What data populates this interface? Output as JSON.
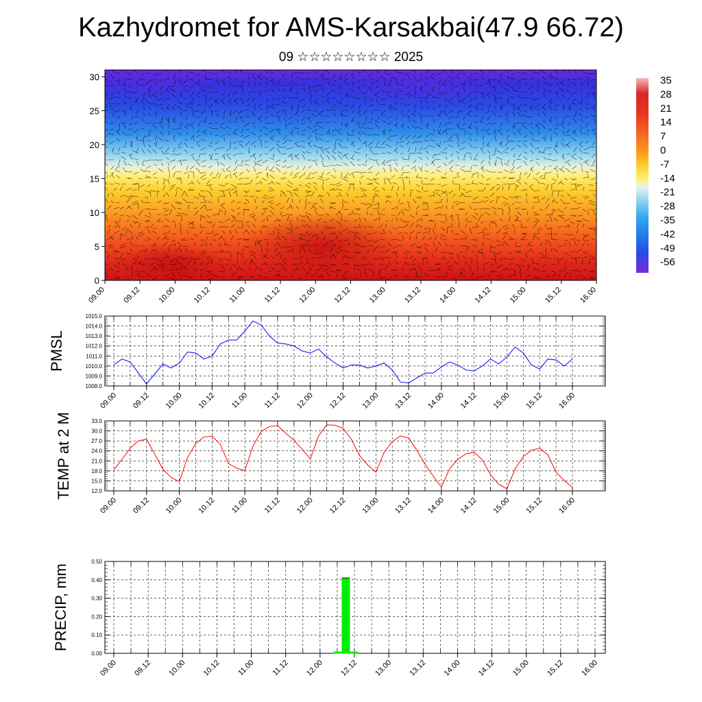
{
  "header": {
    "title": "Kazhydromet for AMS-Karsakbai(47.9 66.72)",
    "subtitle": "09 ☆☆☆☆☆☆☆☆ 2025"
  },
  "colors": {
    "pmsl_line": "#0000ff",
    "temp_line": "#ff0000",
    "precip_bar": "#00ee00"
  },
  "chart_data": [
    {
      "type": "heatmap",
      "title": "",
      "x_tick_labels": [
        "09.00",
        "09.12",
        "10.00",
        "10.12",
        "11.00",
        "11.12",
        "12.00",
        "12.12",
        "13.00",
        "13.12",
        "14.00",
        "14.12",
        "15.00",
        "15.12",
        "16.00"
      ],
      "y_ticks": [
        0,
        5,
        10,
        15,
        20,
        25,
        30
      ],
      "ylim": [
        0,
        31
      ],
      "colorbar_labels": [
        35,
        28,
        21,
        14,
        7,
        0,
        -7,
        -14,
        -21,
        -28,
        -35,
        -42,
        -49,
        -56
      ],
      "colorbar_colors": [
        "#f2b8b8",
        "#d21a1a",
        "#e8341e",
        "#f66a1e",
        "#fb9a20",
        "#fdcf2f",
        "#fff27a",
        "#d8ecf4",
        "#6fcbf0",
        "#2fa6ef",
        "#2175e6",
        "#2a4ae4",
        "#3a2fde",
        "#7a2cd6"
      ],
      "overlay": "wind vectors"
    },
    {
      "type": "line",
      "ylabel": "PMSL",
      "ylim": [
        1008.0,
        1015.0
      ],
      "y_tick_labels": [
        "1008.0",
        "1009.0",
        "1010.0",
        "1011.0",
        "1012.0",
        "1013.0",
        "1014.0",
        "1015.0"
      ],
      "x_tick_labels": [
        "09.00",
        "09.12",
        "10.00",
        "10.12",
        "11.00",
        "11.12",
        "12.00",
        "12.12",
        "13.00",
        "13.12",
        "14.00",
        "14.12",
        "15.00",
        "15.12",
        "16.00"
      ],
      "x_hours": [
        0,
        3,
        6,
        9,
        12,
        15,
        18,
        21,
        24,
        27,
        30,
        33,
        36,
        39,
        42,
        45,
        48,
        51,
        54,
        57,
        60,
        63,
        66,
        69,
        72,
        75,
        78,
        81,
        84,
        87,
        90,
        93,
        96,
        99,
        102,
        105,
        108,
        111,
        114,
        117,
        120,
        123,
        126,
        129,
        132,
        135,
        138,
        141,
        144,
        147,
        150,
        153,
        156,
        159,
        162,
        165,
        168
      ],
      "values": [
        1010.1,
        1010.7,
        1010.4,
        1009.3,
        1008.2,
        1009.2,
        1010.2,
        1009.8,
        1010.3,
        1011.4,
        1011.3,
        1010.7,
        1011.0,
        1012.2,
        1012.6,
        1012.6,
        1013.5,
        1014.5,
        1014.1,
        1013.0,
        1012.3,
        1012.2,
        1012.0,
        1011.5,
        1011.3,
        1011.7,
        1010.9,
        1010.3,
        1009.8,
        1010.1,
        1010.1,
        1009.8,
        1010.0,
        1010.3,
        1009.6,
        1008.4,
        1008.3,
        1008.8,
        1009.3,
        1009.3,
        1009.9,
        1010.4,
        1010.1,
        1009.6,
        1009.5,
        1010.0,
        1010.7,
        1010.2,
        1010.9,
        1011.9,
        1011.3,
        1010.1,
        1009.7,
        1010.7,
        1010.6,
        1010.0,
        1010.7
      ],
      "grid": true
    },
    {
      "type": "line",
      "ylabel": "TEMP at 2 M",
      "ylim": [
        12.0,
        33.0
      ],
      "y_tick_labels": [
        "12.0",
        "15.0",
        "18.0",
        "21.0",
        "24.0",
        "27.0",
        "30.0",
        "33.0"
      ],
      "x_tick_labels": [
        "09.00",
        "09.12",
        "10.00",
        "10.12",
        "11.00",
        "11.12",
        "12.00",
        "12.12",
        "13.00",
        "13.12",
        "14.00",
        "14.12",
        "15.00",
        "15.12",
        "16.00"
      ],
      "x_hours": [
        0,
        3,
        6,
        9,
        12,
        15,
        18,
        21,
        24,
        27,
        30,
        33,
        36,
        39,
        42,
        45,
        48,
        51,
        54,
        57,
        60,
        63,
        66,
        69,
        72,
        75,
        78,
        81,
        84,
        87,
        90,
        93,
        96,
        99,
        102,
        105,
        108,
        111,
        114,
        117,
        120,
        123,
        126,
        129,
        132,
        135,
        138,
        141,
        144,
        147,
        150,
        153,
        156,
        159,
        162,
        165,
        168
      ],
      "values": [
        18.3,
        21.5,
        24.8,
        27.0,
        27.5,
        23.0,
        18.5,
        16.0,
        14.8,
        22.0,
        26.2,
        28.2,
        28.4,
        26.0,
        20.2,
        18.8,
        18.1,
        25.5,
        29.8,
        31.3,
        31.6,
        29.3,
        27.2,
        24.5,
        21.6,
        28.5,
        31.8,
        31.7,
        30.8,
        27.5,
        22.6,
        19.8,
        17.6,
        23.5,
        26.8,
        28.5,
        27.9,
        24.2,
        20.0,
        16.4,
        13.1,
        18.6,
        21.5,
        23.1,
        23.6,
        21.3,
        16.8,
        14.0,
        12.6,
        18.6,
        22.3,
        24.2,
        24.8,
        22.8,
        17.6,
        15.1,
        13.1
      ],
      "grid": true
    },
    {
      "type": "bar",
      "ylabel": "PRECIP, mm",
      "ylim": [
        0.0,
        0.5
      ],
      "y_tick_labels": [
        "0.00",
        "0.10",
        "0.20",
        "0.30",
        "0.40",
        "0.50"
      ],
      "x_tick_labels": [
        "09.00",
        "09.12",
        "10.00",
        "10.12",
        "11.00",
        "11.12",
        "12.00",
        "12.12",
        "13.00",
        "13.12",
        "14.00",
        "14.12",
        "15.00",
        "15.12",
        "16.00"
      ],
      "bars": [
        {
          "x_hour": 81,
          "value": 0.41
        }
      ],
      "grid": true
    }
  ]
}
